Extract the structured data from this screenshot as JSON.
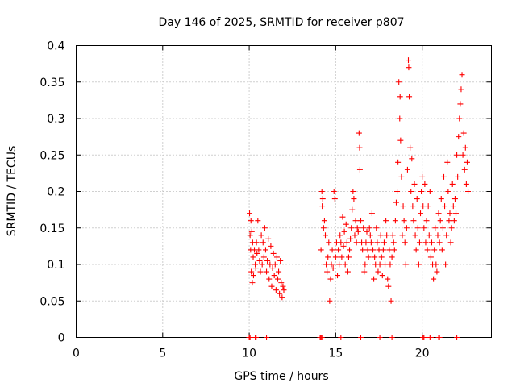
{
  "chart_data": {
    "type": "scatter",
    "title": "Day 146 of 2025, SRMTID for receiver p807",
    "xlabel": "GPS time / hours",
    "ylabel": "SRMTID / TECUs",
    "xlim": [
      0,
      24
    ],
    "ylim": [
      0,
      0.4
    ],
    "xticks": [
      "0",
      "5",
      "10",
      "15",
      "20"
    ],
    "xtick_values": [
      0,
      5,
      10,
      15,
      20
    ],
    "yticks": [
      "0",
      "0.05",
      "0.1",
      "0.15",
      "0.2",
      "0.25",
      "0.3",
      "0.35",
      "0.4"
    ],
    "ytick_values": [
      0,
      0.05,
      0.1,
      0.15,
      0.2,
      0.25,
      0.3,
      0.35,
      0.4
    ],
    "grid": true,
    "marker": "+",
    "color": "#ff0000",
    "series": [
      {
        "name": "SRMTID",
        "points": [
          [
            10.02,
            0.17
          ],
          [
            10.05,
            0.14
          ],
          [
            10.08,
            0.12
          ],
          [
            10.1,
            0.16
          ],
          [
            10.12,
            0.09
          ],
          [
            10.15,
            0.145
          ],
          [
            10.18,
            0.075
          ],
          [
            10.2,
            0.13
          ],
          [
            10.23,
            0.11
          ],
          [
            10.25,
            0.085
          ],
          [
            10.3,
            0.12
          ],
          [
            10.35,
            0.1
          ],
          [
            10.38,
            0.095
          ],
          [
            10.42,
            0.13
          ],
          [
            10.45,
            0.115
          ],
          [
            10.5,
            0.16
          ],
          [
            10.55,
            0.12
          ],
          [
            10.6,
            0.105
          ],
          [
            10.65,
            0.09
          ],
          [
            10.7,
            0.14
          ],
          [
            10.75,
            0.1
          ],
          [
            10.8,
            0.13
          ],
          [
            10.85,
            0.11
          ],
          [
            10.9,
            0.15
          ],
          [
            10.95,
            0.12
          ],
          [
            11.0,
            0.09
          ],
          [
            11.05,
            0.105
          ],
          [
            11.1,
            0.135
          ],
          [
            11.15,
            0.08
          ],
          [
            11.2,
            0.1
          ],
          [
            11.25,
            0.125
          ],
          [
            11.3,
            0.07
          ],
          [
            11.35,
            0.095
          ],
          [
            11.4,
            0.115
          ],
          [
            11.45,
            0.085
          ],
          [
            11.5,
            0.1
          ],
          [
            11.55,
            0.065
          ],
          [
            11.6,
            0.11
          ],
          [
            11.65,
            0.08
          ],
          [
            11.7,
            0.09
          ],
          [
            11.75,
            0.06
          ],
          [
            11.8,
            0.105
          ],
          [
            11.85,
            0.075
          ],
          [
            11.9,
            0.055
          ],
          [
            11.95,
            0.07
          ],
          [
            12.0,
            0.065
          ],
          [
            14.15,
            0.12
          ],
          [
            14.2,
            0.2
          ],
          [
            14.22,
            0.18
          ],
          [
            14.25,
            0.19
          ],
          [
            14.3,
            0.15
          ],
          [
            14.35,
            0.16
          ],
          [
            14.4,
            0.14
          ],
          [
            14.45,
            0.1
          ],
          [
            14.5,
            0.09
          ],
          [
            14.55,
            0.11
          ],
          [
            14.6,
            0.13
          ],
          [
            14.65,
            0.05
          ],
          [
            14.7,
            0.08
          ],
          [
            14.75,
            0.1
          ],
          [
            14.8,
            0.12
          ],
          [
            14.85,
            0.095
          ],
          [
            14.9,
            0.2
          ],
          [
            14.95,
            0.19
          ],
          [
            15.0,
            0.11
          ],
          [
            15.05,
            0.13
          ],
          [
            15.1,
            0.085
          ],
          [
            15.15,
            0.12
          ],
          [
            15.2,
            0.1
          ],
          [
            15.25,
            0.14
          ],
          [
            15.3,
            0.13
          ],
          [
            15.35,
            0.11
          ],
          [
            15.4,
            0.165
          ],
          [
            15.45,
            0.125
          ],
          [
            15.5,
            0.145
          ],
          [
            15.55,
            0.1
          ],
          [
            15.6,
            0.155
          ],
          [
            15.65,
            0.13
          ],
          [
            15.7,
            0.09
          ],
          [
            15.75,
            0.11
          ],
          [
            15.8,
            0.12
          ],
          [
            15.85,
            0.135
          ],
          [
            15.9,
            0.15
          ],
          [
            15.95,
            0.175
          ],
          [
            16.0,
            0.2
          ],
          [
            16.05,
            0.19
          ],
          [
            16.1,
            0.14
          ],
          [
            16.15,
            0.16
          ],
          [
            16.2,
            0.13
          ],
          [
            16.25,
            0.15
          ],
          [
            16.3,
            0.145
          ],
          [
            16.35,
            0.28
          ],
          [
            16.38,
            0.26
          ],
          [
            16.4,
            0.23
          ],
          [
            16.45,
            0.16
          ],
          [
            16.5,
            0.13
          ],
          [
            16.55,
            0.12
          ],
          [
            16.6,
            0.15
          ],
          [
            16.65,
            0.09
          ],
          [
            16.7,
            0.1
          ],
          [
            16.75,
            0.13
          ],
          [
            16.8,
            0.145
          ],
          [
            16.85,
            0.12
          ],
          [
            16.9,
            0.11
          ],
          [
            16.95,
            0.15
          ],
          [
            17.0,
            0.14
          ],
          [
            17.05,
            0.13
          ],
          [
            17.1,
            0.17
          ],
          [
            17.15,
            0.12
          ],
          [
            17.2,
            0.08
          ],
          [
            17.25,
            0.11
          ],
          [
            17.3,
            0.1
          ],
          [
            17.35,
            0.15
          ],
          [
            17.4,
            0.13
          ],
          [
            17.45,
            0.09
          ],
          [
            17.5,
            0.12
          ],
          [
            17.55,
            0.1
          ],
          [
            17.6,
            0.14
          ],
          [
            17.65,
            0.11
          ],
          [
            17.7,
            0.085
          ],
          [
            17.75,
            0.12
          ],
          [
            17.8,
            0.13
          ],
          [
            17.85,
            0.1
          ],
          [
            17.9,
            0.16
          ],
          [
            17.95,
            0.14
          ],
          [
            18.0,
            0.08
          ],
          [
            18.05,
            0.07
          ],
          [
            18.1,
            0.12
          ],
          [
            18.15,
            0.1
          ],
          [
            18.2,
            0.05
          ],
          [
            18.25,
            0.11
          ],
          [
            18.3,
            0.14
          ],
          [
            18.35,
            0.13
          ],
          [
            18.4,
            0.12
          ],
          [
            18.45,
            0.16
          ],
          [
            18.5,
            0.185
          ],
          [
            18.55,
            0.2
          ],
          [
            18.6,
            0.24
          ],
          [
            18.65,
            0.35
          ],
          [
            18.7,
            0.3
          ],
          [
            18.72,
            0.33
          ],
          [
            18.75,
            0.27
          ],
          [
            18.8,
            0.22
          ],
          [
            18.85,
            0.14
          ],
          [
            18.9,
            0.18
          ],
          [
            18.95,
            0.16
          ],
          [
            19.0,
            0.13
          ],
          [
            19.05,
            0.1
          ],
          [
            19.1,
            0.15
          ],
          [
            19.15,
            0.23
          ],
          [
            19.2,
            0.38
          ],
          [
            19.22,
            0.37
          ],
          [
            19.25,
            0.33
          ],
          [
            19.3,
            0.26
          ],
          [
            19.35,
            0.2
          ],
          [
            19.4,
            0.245
          ],
          [
            19.45,
            0.18
          ],
          [
            19.5,
            0.16
          ],
          [
            19.55,
            0.21
          ],
          [
            19.6,
            0.14
          ],
          [
            19.65,
            0.12
          ],
          [
            19.7,
            0.19
          ],
          [
            19.75,
            0.15
          ],
          [
            19.8,
            0.1
          ],
          [
            19.85,
            0.13
          ],
          [
            19.9,
            0.17
          ],
          [
            19.95,
            0.2
          ],
          [
            20.0,
            0.22
          ],
          [
            20.05,
            0.18
          ],
          [
            20.1,
            0.15
          ],
          [
            20.15,
            0.21
          ],
          [
            20.2,
            0.13
          ],
          [
            20.25,
            0.16
          ],
          [
            20.3,
            0.12
          ],
          [
            20.35,
            0.18
          ],
          [
            20.4,
            0.14
          ],
          [
            20.45,
            0.2
          ],
          [
            20.5,
            0.11
          ],
          [
            20.55,
            0.13
          ],
          [
            20.6,
            0.1
          ],
          [
            20.65,
            0.08
          ],
          [
            20.7,
            0.12
          ],
          [
            20.75,
            0.15
          ],
          [
            20.8,
            0.1
          ],
          [
            20.85,
            0.09
          ],
          [
            20.9,
            0.14
          ],
          [
            20.95,
            0.17
          ],
          [
            21.0,
            0.13
          ],
          [
            21.05,
            0.16
          ],
          [
            21.1,
            0.19
          ],
          [
            21.15,
            0.12
          ],
          [
            21.2,
            0.15
          ],
          [
            21.25,
            0.22
          ],
          [
            21.3,
            0.18
          ],
          [
            21.35,
            0.1
          ],
          [
            21.4,
            0.14
          ],
          [
            21.45,
            0.24
          ],
          [
            21.5,
            0.2
          ],
          [
            21.55,
            0.16
          ],
          [
            21.6,
            0.17
          ],
          [
            21.65,
            0.13
          ],
          [
            21.7,
            0.15
          ],
          [
            21.75,
            0.21
          ],
          [
            21.8,
            0.18
          ],
          [
            21.85,
            0.16
          ],
          [
            21.9,
            0.19
          ],
          [
            21.95,
            0.17
          ],
          [
            22.0,
            0.25
          ],
          [
            22.05,
            0.22
          ],
          [
            22.1,
            0.275
          ],
          [
            22.15,
            0.3
          ],
          [
            22.2,
            0.32
          ],
          [
            22.25,
            0.34
          ],
          [
            22.3,
            0.36
          ],
          [
            22.35,
            0.25
          ],
          [
            22.4,
            0.28
          ],
          [
            22.45,
            0.23
          ],
          [
            22.5,
            0.26
          ],
          [
            22.55,
            0.21
          ],
          [
            22.6,
            0.24
          ],
          [
            22.65,
            0.2
          ]
        ],
        "zero_points": [
          10.0,
          10.05,
          10.35,
          10.4,
          11.0,
          14.1,
          14.15,
          14.2,
          15.3,
          16.45,
          17.55,
          18.25,
          20.05,
          20.1,
          20.45,
          20.5,
          20.95,
          21.0,
          22.0
        ]
      }
    ]
  }
}
